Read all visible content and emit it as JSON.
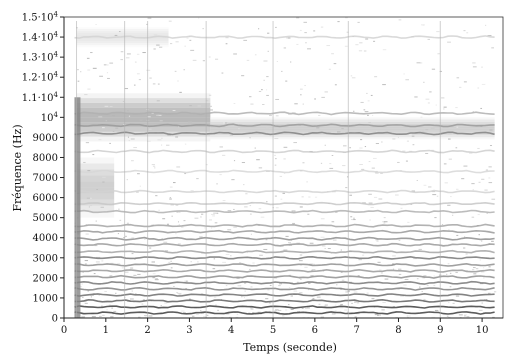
{
  "chart_data": {
    "type": "heatmap",
    "title": "",
    "xlabel": "Temps (seconde)",
    "ylabel": "Fréquence (Hz)",
    "xlim": [
      0,
      10.5
    ],
    "ylim": [
      0,
      15000
    ],
    "grid": false,
    "colormap": "grayscale (white = low energy, black = high energy)",
    "x_ticks": [
      {
        "value": 0,
        "label": "0"
      },
      {
        "value": 1,
        "label": "1"
      },
      {
        "value": 2,
        "label": "2"
      },
      {
        "value": 3,
        "label": "3"
      },
      {
        "value": 4,
        "label": "4"
      },
      {
        "value": 5,
        "label": "5"
      },
      {
        "value": 6,
        "label": "6"
      },
      {
        "value": 7,
        "label": "7"
      },
      {
        "value": 8,
        "label": "8"
      },
      {
        "value": 9,
        "label": "9"
      },
      {
        "value": 10,
        "label": "10"
      }
    ],
    "y_ticks": [
      {
        "value": 0,
        "label": "0"
      },
      {
        "value": 1000,
        "label": "1000"
      },
      {
        "value": 2000,
        "label": "2000"
      },
      {
        "value": 3000,
        "label": "3000"
      },
      {
        "value": 4000,
        "label": "4000"
      },
      {
        "value": 5000,
        "label": "5000"
      },
      {
        "value": 6000,
        "label": "6000"
      },
      {
        "value": 7000,
        "label": "7000"
      },
      {
        "value": 8000,
        "label": "8000"
      },
      {
        "value": 9000,
        "label": "9000"
      },
      {
        "value": 10000,
        "label": "10",
        "exp": "4"
      },
      {
        "value": 11000,
        "label": "1.1·10",
        "exp": "4"
      },
      {
        "value": 12000,
        "label": "1.2·10",
        "exp": "4"
      },
      {
        "value": 13000,
        "label": "1.3·10",
        "exp": "4"
      },
      {
        "value": 14000,
        "label": "1.4·10",
        "exp": "4"
      },
      {
        "value": 15000,
        "label": "1.5·10",
        "exp": "4"
      }
    ],
    "signal": {
      "onset_time": 0.25,
      "end_time": 10.3,
      "transient_times": [
        0.3,
        1.45,
        2.0,
        3.4,
        5.0,
        6.8,
        9.0
      ],
      "harmonic_bands": [
        {
          "freq": 250,
          "intensity": 0.85
        },
        {
          "freq": 550,
          "intensity": 0.85
        },
        {
          "freq": 850,
          "intensity": 0.7
        },
        {
          "freq": 1150,
          "intensity": 0.65
        },
        {
          "freq": 1450,
          "intensity": 0.55
        },
        {
          "freq": 1750,
          "intensity": 0.6
        },
        {
          "freq": 2050,
          "intensity": 0.5
        },
        {
          "freq": 2350,
          "intensity": 0.45
        },
        {
          "freq": 2650,
          "intensity": 0.5
        },
        {
          "freq": 3000,
          "intensity": 0.6
        },
        {
          "freq": 3300,
          "intensity": 0.4
        },
        {
          "freq": 3650,
          "intensity": 0.45
        },
        {
          "freq": 3950,
          "intensity": 0.5
        },
        {
          "freq": 4300,
          "intensity": 0.45
        },
        {
          "freq": 4600,
          "intensity": 0.4
        },
        {
          "freq": 5300,
          "intensity": 0.35
        },
        {
          "freq": 5700,
          "intensity": 0.25
        },
        {
          "freq": 6300,
          "intensity": 0.2
        },
        {
          "freq": 7300,
          "intensity": 0.18
        },
        {
          "freq": 8300,
          "intensity": 0.22
        },
        {
          "freq": 9200,
          "intensity": 0.55
        },
        {
          "freq": 9600,
          "intensity": 0.45
        },
        {
          "freq": 10200,
          "intensity": 0.35
        },
        {
          "freq": 14000,
          "intensity": 0.2
        }
      ],
      "energy_regions": [
        {
          "t0": 0.3,
          "t1": 3.5,
          "f0": 8800,
          "f1": 11200,
          "intensity": 0.45
        },
        {
          "t0": 3.5,
          "t1": 10.3,
          "f0": 8900,
          "f1": 10000,
          "intensity": 0.3
        },
        {
          "t0": 0.3,
          "t1": 2.5,
          "f0": 13500,
          "f1": 14500,
          "intensity": 0.15
        },
        {
          "t0": 0.3,
          "t1": 1.2,
          "f0": 5000,
          "f1": 8000,
          "intensity": 0.3
        }
      ]
    }
  }
}
